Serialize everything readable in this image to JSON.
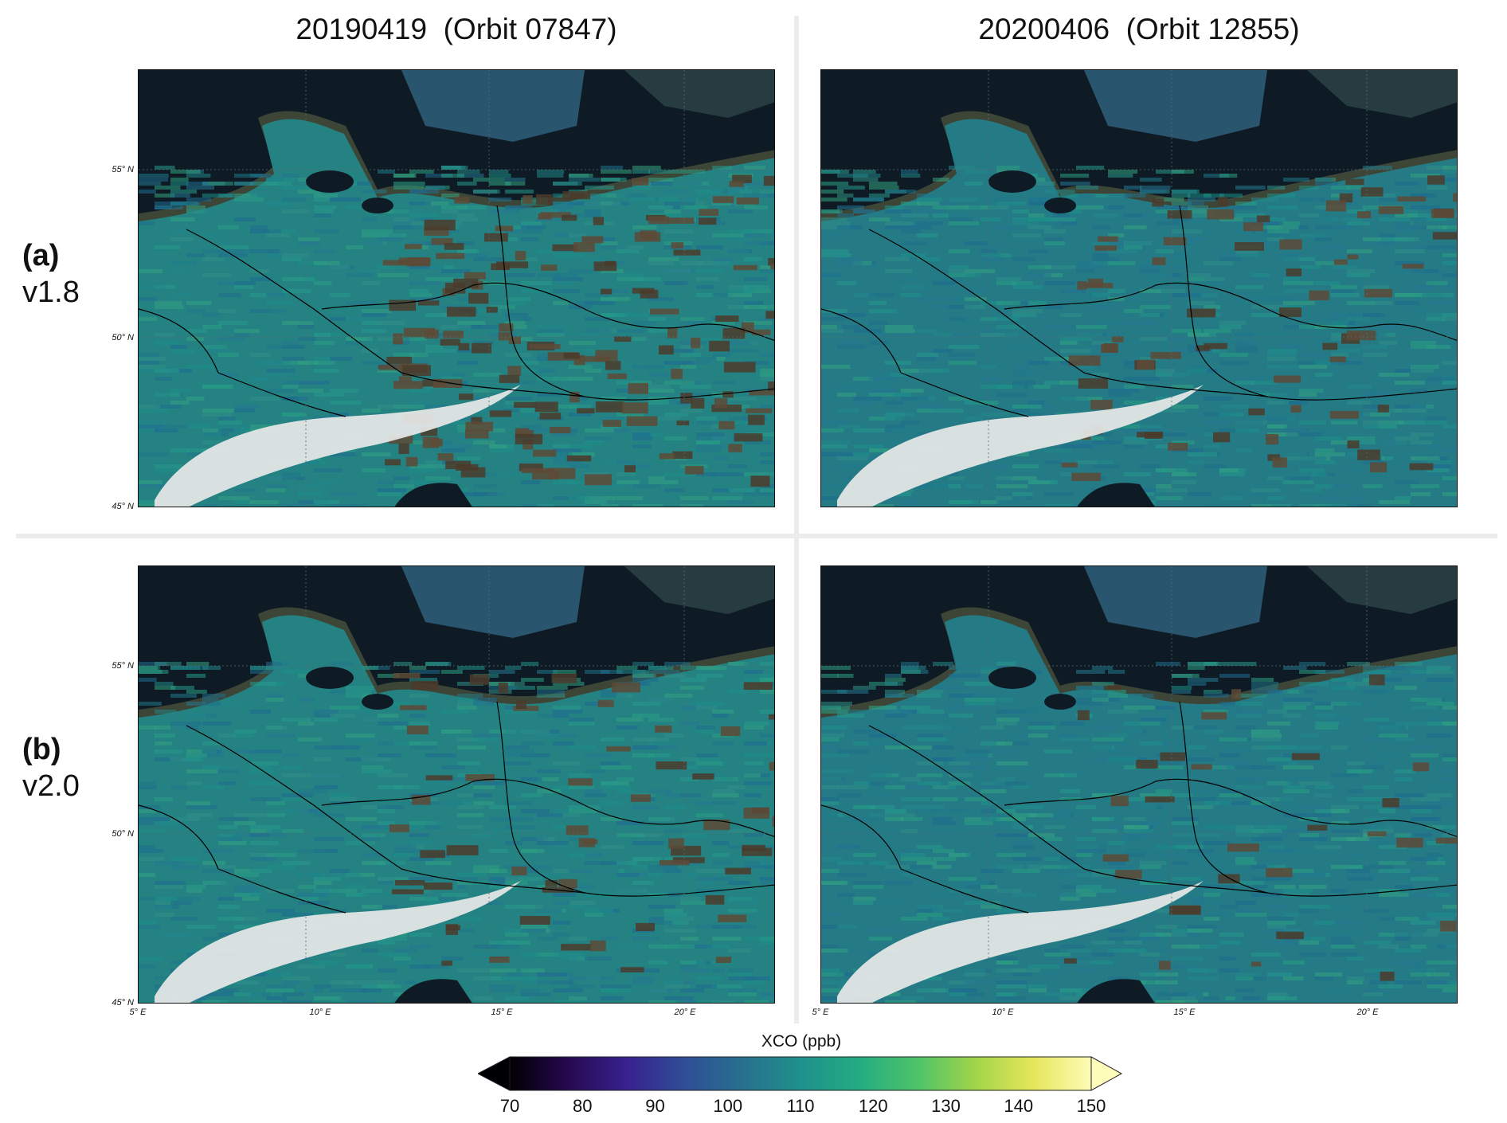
{
  "columns": [
    {
      "title": "20190419  (Orbit 07847)"
    },
    {
      "title": "20200406  (Orbit 12855)"
    }
  ],
  "rows": [
    {
      "letter": "(a)",
      "version": "v1.8"
    },
    {
      "letter": "(b)",
      "version": "v2.0"
    }
  ],
  "map": {
    "lat_ticks": [
      "55° N",
      "50° N",
      "45° N"
    ],
    "lon_ticks": [
      "5° E",
      "10° E",
      "15° E",
      "20° E"
    ],
    "colors": {
      "sea": "#0e1b25",
      "land_background": "#3d4636",
      "snow": "#e8e8e8",
      "border": "#000000"
    }
  },
  "colorbar": {
    "title": "XCO (ppb)",
    "ticks": [
      "70",
      "80",
      "90",
      "100",
      "110",
      "120",
      "130",
      "140",
      "150"
    ],
    "colormap": "viridis",
    "extend": "both",
    "min": 70,
    "max": 150
  }
}
